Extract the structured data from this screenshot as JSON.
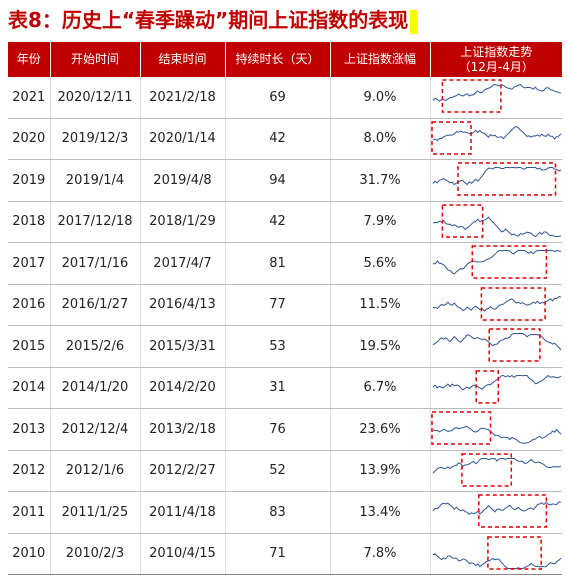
{
  "header": {
    "title": "表8：历史上“春季躁动”期间上证指数的表现"
  },
  "table": {
    "columns": [
      "年份",
      "开始时间",
      "结束时间",
      "持续时长（天）",
      "上证指数涨幅",
      [
        "上证指数走势",
        "（12月-4月）"
      ]
    ],
    "rows": [
      [
        "2021",
        "2020/12/11",
        "2021/2/18",
        "69",
        "9.0%"
      ],
      [
        "2020",
        "2019/12/3",
        "2020/1/14",
        "42",
        "8.0%"
      ],
      [
        "2019",
        "2019/1/4",
        "2019/4/8",
        "94",
        "31.7%"
      ],
      [
        "2018",
        "2017/12/18",
        "2018/1/29",
        "42",
        "7.9%"
      ],
      [
        "2017",
        "2017/1/16",
        "2017/4/7",
        "81",
        "5.6%"
      ],
      [
        "2016",
        "2016/1/27",
        "2016/4/13",
        "77",
        "11.5%"
      ],
      [
        "2015",
        "2015/2/6",
        "2015/3/31",
        "53",
        "19.5%"
      ],
      [
        "2014",
        "2014/1/20",
        "2014/2/20",
        "31",
        "6.7%"
      ],
      [
        "2013",
        "2012/12/4",
        "2013/2/18",
        "76",
        "23.6%"
      ],
      [
        "2012",
        "2012/1/6",
        "2012/2/27",
        "52",
        "13.9%"
      ],
      [
        "2011",
        "2011/1/25",
        "2011/4/18",
        "83",
        "13.4%"
      ],
      [
        "2010",
        "2010/2/3",
        "2010/4/15",
        "71",
        "7.8%"
      ]
    ]
  }
}
